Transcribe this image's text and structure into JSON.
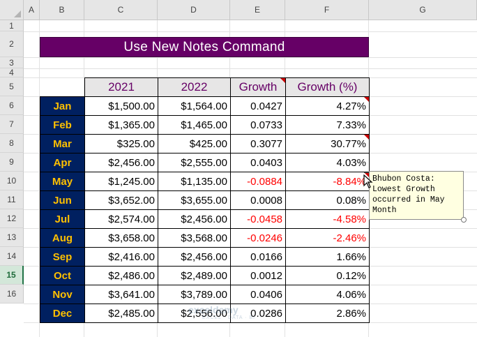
{
  "columns": [
    "A",
    "B",
    "C",
    "D",
    "E",
    "F",
    "G"
  ],
  "rows": [
    "1",
    "2",
    "3",
    "4",
    "5",
    "6",
    "7",
    "8",
    "9",
    "10",
    "11",
    "12",
    "13",
    "14",
    "15",
    "16"
  ],
  "selected_row": "15",
  "title": "Use New Notes Command",
  "table": {
    "headers": [
      "2021",
      "2022",
      "Growth",
      "Growth (%)"
    ],
    "rows": [
      {
        "month": "Jan",
        "y2021": "$1,500.00",
        "y2022": "$1,564.00",
        "growth": "0.0427",
        "pct": "4.27%",
        "negative": false,
        "note": true
      },
      {
        "month": "Feb",
        "y2021": "$1,365.00",
        "y2022": "$1,465.00",
        "growth": "0.0733",
        "pct": "7.33%",
        "negative": false,
        "note": false
      },
      {
        "month": "Mar",
        "y2021": "$325.00",
        "y2022": "$425.00",
        "growth": "0.3077",
        "pct": "30.77%",
        "negative": false,
        "note": false
      },
      {
        "month": "Apr",
        "y2021": "$2,456.00",
        "y2022": "$2,555.00",
        "growth": "0.0403",
        "pct": "4.03%",
        "negative": false,
        "note": false
      },
      {
        "month": "May",
        "y2021": "$1,245.00",
        "y2022": "$1,135.00",
        "growth": "-0.0884",
        "pct": "-8.84%",
        "negative": true,
        "note": false
      },
      {
        "month": "Jun",
        "y2021": "$3,652.00",
        "y2022": "$3,655.00",
        "growth": "0.0008",
        "pct": "0.08%",
        "negative": false,
        "note": false
      },
      {
        "month": "Jul",
        "y2021": "$2,574.00",
        "y2022": "$2,456.00",
        "growth": "-0.0458",
        "pct": "-4.58%",
        "negative": true,
        "note": false
      },
      {
        "month": "Aug",
        "y2021": "$3,658.00",
        "y2022": "$3,568.00",
        "growth": "-0.0246",
        "pct": "-2.46%",
        "negative": true,
        "note": false
      },
      {
        "month": "Sep",
        "y2021": "$2,416.00",
        "y2022": "$2,456.00",
        "growth": "0.0166",
        "pct": "1.66%",
        "negative": false,
        "note": false
      },
      {
        "month": "Oct",
        "y2021": "$2,486.00",
        "y2022": "$2,489.00",
        "growth": "0.0012",
        "pct": "0.12%",
        "negative": false,
        "note": false
      },
      {
        "month": "Nov",
        "y2021": "$3,641.00",
        "y2022": "$3,789.00",
        "growth": "0.0406",
        "pct": "4.06%",
        "negative": false,
        "note": false
      },
      {
        "month": "Dec",
        "y2021": "$2,485.00",
        "y2022": "$2,556.00",
        "growth": "0.0286",
        "pct": "2.86%",
        "negative": false,
        "note": false
      }
    ]
  },
  "comment": {
    "lines": [
      "Bhubon Costa:",
      "Lowest Growth",
      "occurred in May",
      "Month"
    ]
  },
  "watermark": {
    "name": "exceldemy",
    "tagline": "EXCEL · DATA · BI"
  },
  "colors": {
    "title_bg": "#660066",
    "month_bg": "#002060",
    "month_fg": "#ffc000",
    "header_fg": "#660066",
    "negative": "#ff0000",
    "note_marker": "#cc0000"
  }
}
